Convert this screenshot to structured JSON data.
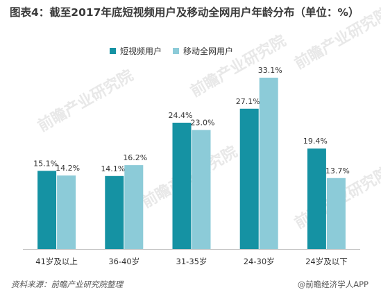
{
  "title": "图表4：截至2017年底短视频用户及移动全网用户年龄分布（单位：%）",
  "watermark": "前瞻产业研究院",
  "source_label": "资料来源：前瞻产业研究院整理",
  "brand_label": "@前瞻经济学人APP",
  "colors": {
    "short_video": "#1592a3",
    "mobile_total": "#8ccbd8",
    "axis": "#bfbfbf",
    "text": "#333333"
  },
  "chart_data": {
    "type": "bar",
    "title": "图表4：截至2017年底短视频用户及移动全网用户年龄分布（单位：%）",
    "xlabel": "",
    "ylabel": "",
    "ylim": [
      0,
      35
    ],
    "grid": false,
    "legend_position": "top-center",
    "categories": [
      "41岁及以上",
      "36-40岁",
      "31-35岁",
      "24-30岁",
      "24岁及以下"
    ],
    "series": [
      {
        "name": "短视频用户",
        "values": [
          15.1,
          14.1,
          24.4,
          27.1,
          19.4
        ],
        "labels": [
          "15.1%",
          "14.1%",
          "24.4%",
          "27.1%",
          "19.4%"
        ]
      },
      {
        "name": "移动全网用户",
        "values": [
          14.2,
          16.2,
          23.0,
          33.1,
          13.7
        ],
        "labels": [
          "14.2%",
          "16.2%",
          "23.0%",
          "33.1%",
          "13.7%"
        ]
      }
    ]
  }
}
